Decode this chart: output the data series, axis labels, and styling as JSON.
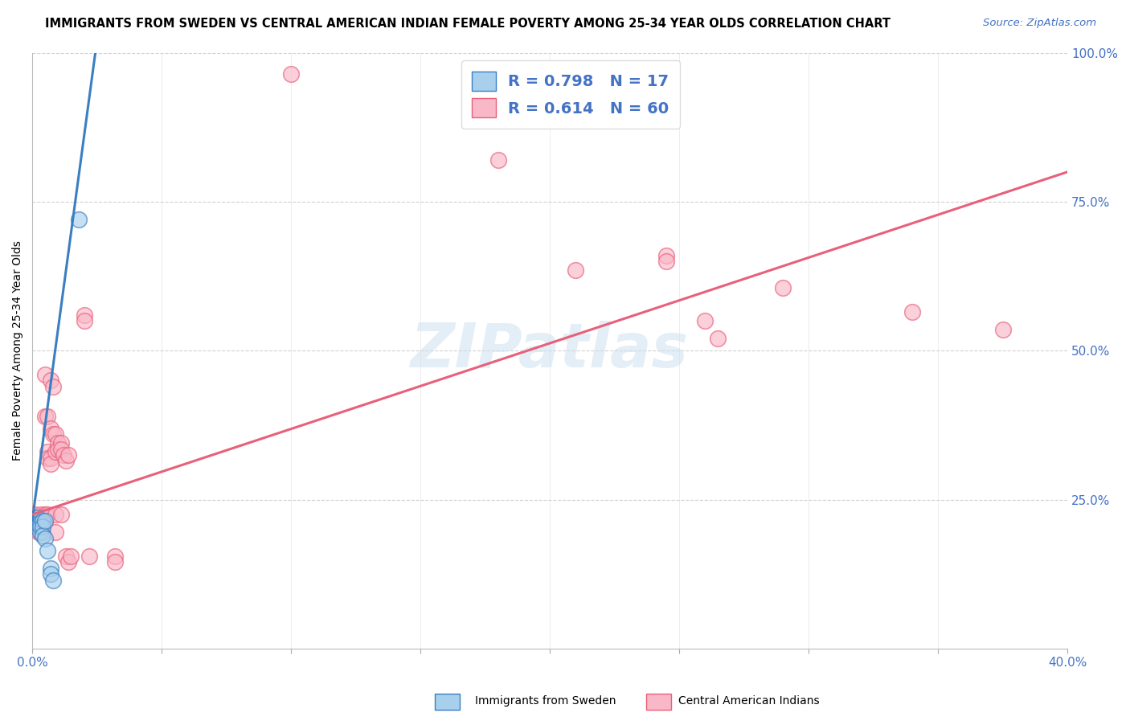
{
  "title": "IMMIGRANTS FROM SWEDEN VS CENTRAL AMERICAN INDIAN FEMALE POVERTY AMONG 25-34 YEAR OLDS CORRELATION CHART",
  "source": "Source: ZipAtlas.com",
  "ylabel": "Female Poverty Among 25-34 Year Olds",
  "xlim": [
    0,
    0.4
  ],
  "ylim": [
    0,
    1.0
  ],
  "xticks": [
    0.0,
    0.05,
    0.1,
    0.15,
    0.2,
    0.25,
    0.3,
    0.35,
    0.4
  ],
  "xtick_labels_show": [
    "0.0%",
    "",
    "",
    "",
    "",
    "",
    "",
    "",
    "40.0%"
  ],
  "yticks": [
    0.0,
    0.25,
    0.5,
    0.75,
    1.0
  ],
  "ytick_labels": [
    "",
    "25.0%",
    "50.0%",
    "75.0%",
    "100.0%"
  ],
  "blue_R": 0.798,
  "blue_N": 17,
  "pink_R": 0.614,
  "pink_N": 60,
  "blue_color": "#a8d0ed",
  "pink_color": "#f9b8c8",
  "blue_line_color": "#3a7fc1",
  "pink_line_color": "#e8607a",
  "tick_color": "#4472c4",
  "blue_scatter": [
    [
      0.0008,
      0.215
    ],
    [
      0.0015,
      0.205
    ],
    [
      0.002,
      0.22
    ],
    [
      0.002,
      0.21
    ],
    [
      0.003,
      0.195
    ],
    [
      0.003,
      0.21
    ],
    [
      0.003,
      0.205
    ],
    [
      0.004,
      0.215
    ],
    [
      0.004,
      0.205
    ],
    [
      0.004,
      0.19
    ],
    [
      0.005,
      0.215
    ],
    [
      0.005,
      0.185
    ],
    [
      0.006,
      0.165
    ],
    [
      0.007,
      0.135
    ],
    [
      0.007,
      0.125
    ],
    [
      0.008,
      0.115
    ],
    [
      0.018,
      0.72
    ]
  ],
  "pink_scatter": [
    [
      0.0008,
      0.225
    ],
    [
      0.001,
      0.215
    ],
    [
      0.001,
      0.22
    ],
    [
      0.0015,
      0.21
    ],
    [
      0.002,
      0.205
    ],
    [
      0.002,
      0.22
    ],
    [
      0.0025,
      0.195
    ],
    [
      0.003,
      0.215
    ],
    [
      0.003,
      0.22
    ],
    [
      0.003,
      0.215
    ],
    [
      0.003,
      0.205
    ],
    [
      0.0035,
      0.225
    ],
    [
      0.004,
      0.22
    ],
    [
      0.004,
      0.205
    ],
    [
      0.004,
      0.195
    ],
    [
      0.004,
      0.22
    ],
    [
      0.005,
      0.39
    ],
    [
      0.005,
      0.46
    ],
    [
      0.005,
      0.215
    ],
    [
      0.005,
      0.225
    ],
    [
      0.006,
      0.39
    ],
    [
      0.006,
      0.33
    ],
    [
      0.006,
      0.32
    ],
    [
      0.006,
      0.225
    ],
    [
      0.007,
      0.45
    ],
    [
      0.007,
      0.37
    ],
    [
      0.007,
      0.32
    ],
    [
      0.007,
      0.31
    ],
    [
      0.008,
      0.44
    ],
    [
      0.008,
      0.36
    ],
    [
      0.009,
      0.36
    ],
    [
      0.009,
      0.33
    ],
    [
      0.009,
      0.225
    ],
    [
      0.009,
      0.195
    ],
    [
      0.01,
      0.345
    ],
    [
      0.01,
      0.335
    ],
    [
      0.011,
      0.345
    ],
    [
      0.011,
      0.335
    ],
    [
      0.011,
      0.225
    ],
    [
      0.012,
      0.325
    ],
    [
      0.013,
      0.315
    ],
    [
      0.013,
      0.155
    ],
    [
      0.014,
      0.325
    ],
    [
      0.014,
      0.145
    ],
    [
      0.015,
      0.155
    ],
    [
      0.02,
      0.56
    ],
    [
      0.02,
      0.55
    ],
    [
      0.022,
      0.155
    ],
    [
      0.032,
      0.155
    ],
    [
      0.032,
      0.145
    ],
    [
      0.1,
      0.965
    ],
    [
      0.18,
      0.82
    ],
    [
      0.21,
      0.635
    ],
    [
      0.245,
      0.66
    ],
    [
      0.245,
      0.65
    ],
    [
      0.26,
      0.55
    ],
    [
      0.265,
      0.52
    ],
    [
      0.29,
      0.605
    ],
    [
      0.34,
      0.565
    ],
    [
      0.375,
      0.535
    ]
  ],
  "blue_line_x": [
    0.0,
    0.025
  ],
  "blue_line_y": [
    0.215,
    1.02
  ],
  "pink_line_x": [
    0.0,
    0.4
  ],
  "pink_line_y": [
    0.225,
    0.8
  ],
  "watermark": "ZIPatlas",
  "legend_label_blue": "Immigrants from Sweden",
  "legend_label_pink": "Central American Indians"
}
